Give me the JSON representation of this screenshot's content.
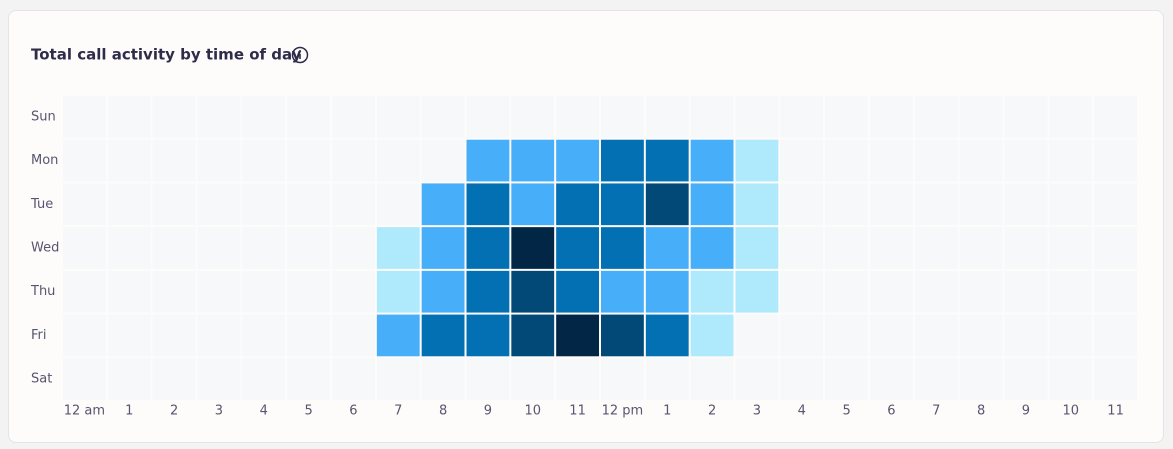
{
  "chart_data": {
    "type": "heatmap",
    "title": "Total call activity by time of day",
    "rows": [
      "Sun",
      "Mon",
      "Tue",
      "Wed",
      "Thu",
      "Fri",
      "Sat"
    ],
    "categories": [
      "12 am",
      "1",
      "2",
      "3",
      "4",
      "5",
      "6",
      "7",
      "8",
      "9",
      "10",
      "11",
      "12 pm",
      "1",
      "2",
      "3",
      "4",
      "5",
      "6",
      "7",
      "8",
      "9",
      "10",
      "11"
    ],
    "values": [
      [
        0,
        0,
        0,
        0,
        0,
        0,
        0,
        0,
        0,
        0,
        0,
        0,
        0,
        0,
        0,
        0,
        0,
        0,
        0,
        0,
        0,
        0,
        0,
        0
      ],
      [
        0,
        0,
        0,
        0,
        0,
        0,
        0,
        0,
        0,
        2,
        2,
        2,
        3,
        3,
        2,
        1,
        0,
        0,
        0,
        0,
        0,
        0,
        0,
        0
      ],
      [
        0,
        0,
        0,
        0,
        0,
        0,
        0,
        0,
        2,
        3,
        2,
        3,
        3,
        4,
        2,
        1,
        0,
        0,
        0,
        0,
        0,
        0,
        0,
        0
      ],
      [
        0,
        0,
        0,
        0,
        0,
        0,
        0,
        1,
        2,
        3,
        5,
        3,
        3,
        2,
        2,
        1,
        0,
        0,
        0,
        0,
        0,
        0,
        0,
        0
      ],
      [
        0,
        0,
        0,
        0,
        0,
        0,
        0,
        1,
        2,
        3,
        4,
        3,
        2,
        2,
        1,
        1,
        0,
        0,
        0,
        0,
        0,
        0,
        0,
        0
      ],
      [
        0,
        0,
        0,
        0,
        0,
        0,
        0,
        2,
        3,
        3,
        4,
        5,
        4,
        3,
        1,
        0,
        0,
        0,
        0,
        0,
        0,
        0,
        0,
        0
      ],
      [
        0,
        0,
        0,
        0,
        0,
        0,
        0,
        0,
        0,
        0,
        0,
        0,
        0,
        0,
        0,
        0,
        0,
        0,
        0,
        0,
        0,
        0,
        0,
        0
      ]
    ],
    "colors": [
      "#f7f8f9",
      "#aeeafb",
      "#47aef9",
      "#0370b4",
      "#034978",
      "#022746"
    ]
  }
}
